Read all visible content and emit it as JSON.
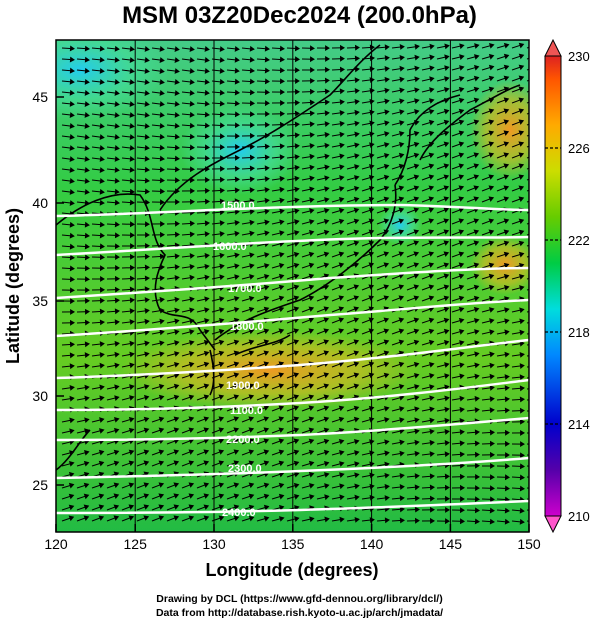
{
  "title": "MSM 03Z20Dec2024 (200.0hPa)",
  "x_axis": {
    "label": "Longitude (degrees)",
    "ticks": [
      "120",
      "125",
      "130",
      "135",
      "140",
      "145",
      "150"
    ]
  },
  "y_axis": {
    "label": "Latitude  (degrees)",
    "ticks": [
      "25",
      "30",
      "35",
      "40",
      "45"
    ]
  },
  "colorbar": {
    "ticks": [
      "230",
      "226",
      "222",
      "218",
      "214",
      "210"
    ]
  },
  "contours": [
    {
      "label": "1500.0"
    },
    {
      "label": "1600.0"
    },
    {
      "label": "1700.0"
    },
    {
      "label": "1800.0"
    },
    {
      "label": "1900.0"
    },
    {
      "label": "1100.0"
    },
    {
      "label": "2200.0"
    },
    {
      "label": "2300.0"
    },
    {
      "label": "2400.0"
    }
  ],
  "footer": {
    "line1": "Drawing by DCL (https://www.gfd-dennou.org/library/dcl/)",
    "line2": "Data from http://database.rish.kyoto-u.ac.jp/arch/jmadata/"
  }
}
